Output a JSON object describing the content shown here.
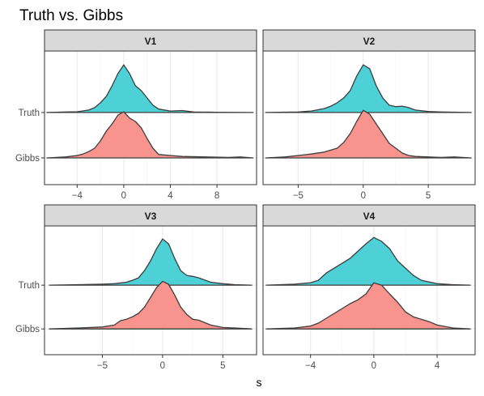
{
  "chart_data": {
    "type": "area",
    "subtype": "ridgeline-facet",
    "title": "Truth vs. Gibbs",
    "xlabel": "s",
    "ylabel": "",
    "grid": true,
    "legend": "none",
    "row_labels": [
      "Truth",
      "Gibbs"
    ],
    "colors": {
      "Truth": "#4ed1d6",
      "Gibbs": "#f8938e",
      "line": "#3d3d3d",
      "strip_bg": "#d9d9d9",
      "grid": "#ebebeb"
    },
    "panels": [
      {
        "name": "V1",
        "xlim": [
          -6.8,
          11.4
        ],
        "xticks": [
          -4,
          0,
          4,
          8
        ],
        "xticklabels": [
          "−4",
          "0",
          "4",
          "8"
        ],
        "series": [
          {
            "name": "Truth",
            "x": [
              -6.6,
              -5,
              -4,
              -3,
              -2.5,
              -2,
              -1.5,
              -1,
              -0.5,
              0,
              0.5,
              1,
              1.5,
              2,
              2.5,
              3,
              4,
              5,
              6,
              8,
              11.1
            ],
            "y": [
              0,
              0.01,
              0.015,
              0.05,
              0.1,
              0.2,
              0.33,
              0.55,
              0.8,
              0.98,
              0.8,
              0.55,
              0.45,
              0.3,
              0.15,
              0.07,
              0.03,
              0.04,
              0.01,
              0.005,
              0
            ]
          },
          {
            "name": "Gibbs",
            "x": [
              -6.6,
              -5,
              -4,
              -3.5,
              -3,
              -2.5,
              -2,
              -1.5,
              -1,
              -0.5,
              0,
              0.5,
              1,
              1.5,
              2,
              2.5,
              3,
              4,
              5,
              7,
              9,
              10,
              11.1
            ],
            "y": [
              0,
              0.02,
              0.05,
              0.08,
              0.13,
              0.2,
              0.35,
              0.55,
              0.7,
              0.88,
              0.95,
              0.82,
              0.75,
              0.62,
              0.4,
              0.2,
              0.07,
              0.05,
              0.03,
              0.02,
              0.01,
              0.02,
              0
            ]
          }
        ]
      },
      {
        "name": "V2",
        "xlim": [
          -7.7,
          8.6
        ],
        "xticks": [
          -5,
          0,
          5
        ],
        "xticklabels": [
          "−5",
          "0",
          "5"
        ],
        "series": [
          {
            "name": "Truth",
            "x": [
              -7.5,
              -5,
              -4,
              -3,
              -2.5,
              -2,
              -1.5,
              -1,
              -0.5,
              0,
              0.5,
              1,
              1.5,
              2,
              2.5,
              3,
              3.5,
              4,
              5,
              6,
              8.3
            ],
            "y": [
              0,
              0.01,
              0.03,
              0.08,
              0.13,
              0.2,
              0.3,
              0.45,
              0.75,
              0.98,
              0.9,
              0.55,
              0.3,
              0.15,
              0.12,
              0.13,
              0.1,
              0.05,
              0.02,
              0.01,
              0
            ]
          },
          {
            "name": "Gibbs",
            "x": [
              -7.5,
              -6,
              -5,
              -4,
              -3,
              -2,
              -1.5,
              -1,
              -0.5,
              0,
              0.5,
              1,
              1.5,
              2,
              2.5,
              3,
              3.5,
              4,
              5,
              6,
              7,
              8.3
            ],
            "y": [
              0,
              0.02,
              0.05,
              0.08,
              0.12,
              0.2,
              0.32,
              0.5,
              0.75,
              0.98,
              0.9,
              0.7,
              0.5,
              0.3,
              0.2,
              0.1,
              0.05,
              0.03,
              0.02,
              0.01,
              0.02,
              0
            ]
          }
        ]
      },
      {
        "name": "V3",
        "xlim": [
          -9.8,
          7.8
        ],
        "xticks": [
          -5,
          0,
          5
        ],
        "xticklabels": [
          "−5",
          "0",
          "5"
        ],
        "series": [
          {
            "name": "Truth",
            "x": [
              -9.4,
              -7,
              -5,
              -4,
              -3,
              -2.5,
              -2,
              -1.5,
              -1,
              -0.5,
              0,
              0.5,
              1,
              1.5,
              2,
              2.5,
              3,
              4,
              5,
              6,
              7.4
            ],
            "y": [
              0,
              0.01,
              0.02,
              0.03,
              0.06,
              0.1,
              0.15,
              0.3,
              0.5,
              0.75,
              0.95,
              0.85,
              0.55,
              0.3,
              0.2,
              0.18,
              0.15,
              0.06,
              0.03,
              0.01,
              0
            ]
          },
          {
            "name": "Gibbs",
            "x": [
              -9.4,
              -7,
              -5,
              -4,
              -3.5,
              -3,
              -2.5,
              -2,
              -1.5,
              -1,
              -0.5,
              0,
              0.5,
              1,
              1.5,
              2,
              2.5,
              3,
              4,
              5,
              6,
              7.4
            ],
            "y": [
              0,
              0.02,
              0.04,
              0.08,
              0.17,
              0.2,
              0.25,
              0.32,
              0.45,
              0.65,
              0.85,
              0.98,
              0.92,
              0.7,
              0.45,
              0.3,
              0.2,
              0.18,
              0.08,
              0.03,
              0.02,
              0
            ]
          }
        ]
      },
      {
        "name": "V4",
        "xlim": [
          -7.0,
          6.4
        ],
        "xticks": [
          -4,
          0,
          4
        ],
        "xticklabels": [
          "−4",
          "0",
          "4"
        ],
        "series": [
          {
            "name": "Truth",
            "x": [
              -6.8,
              -5,
              -4,
              -3.5,
              -3,
              -2.5,
              -2,
              -1.5,
              -1,
              -0.5,
              0,
              0.5,
              1,
              1.5,
              2,
              2.5,
              3,
              4,
              5,
              6.1
            ],
            "y": [
              0,
              0.02,
              0.05,
              0.1,
              0.25,
              0.35,
              0.45,
              0.55,
              0.7,
              0.85,
              0.98,
              0.9,
              0.75,
              0.5,
              0.35,
              0.2,
              0.1,
              0.03,
              0.01,
              0
            ]
          },
          {
            "name": "Gibbs",
            "x": [
              -6.8,
              -5,
              -4,
              -3.5,
              -3,
              -2.5,
              -2,
              -1.5,
              -1,
              -0.5,
              0,
              0.5,
              1,
              1.5,
              2,
              2.5,
              3,
              3.5,
              4,
              5,
              6.1
            ],
            "y": [
              0,
              0.02,
              0.06,
              0.12,
              0.22,
              0.32,
              0.42,
              0.52,
              0.6,
              0.72,
              0.95,
              0.9,
              0.72,
              0.55,
              0.35,
              0.25,
              0.2,
              0.15,
              0.08,
              0.02,
              0
            ]
          }
        ]
      }
    ]
  }
}
